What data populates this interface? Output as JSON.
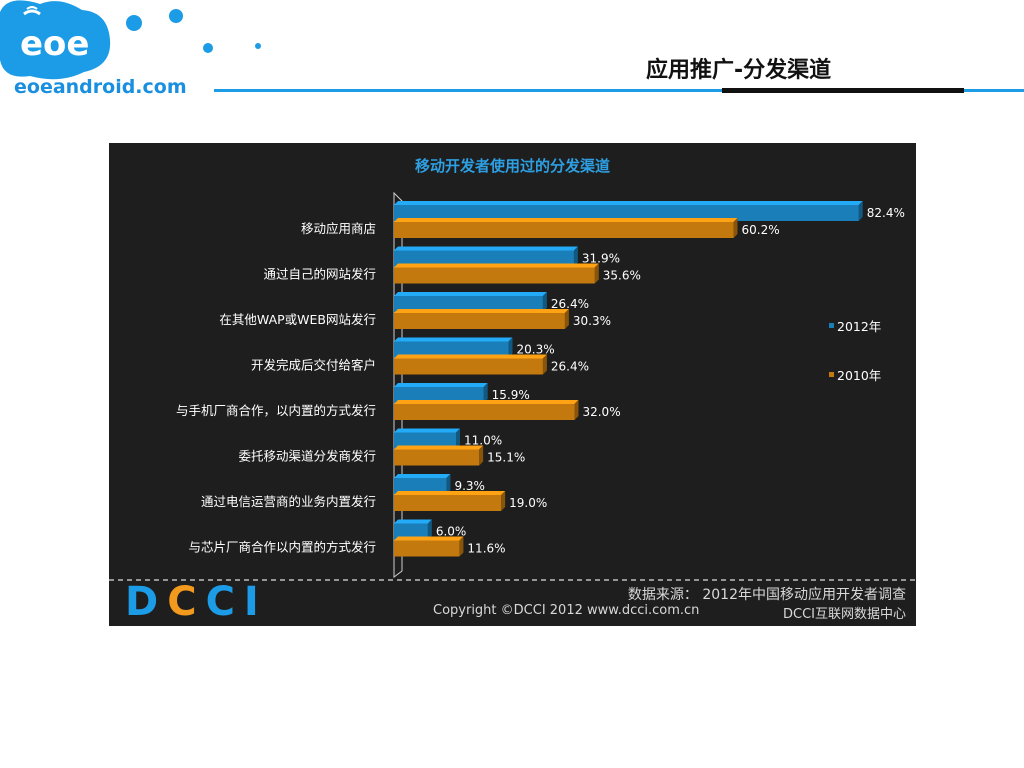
{
  "header": {
    "logo_badge": "eoe",
    "logo_text": "eoeandroid.com",
    "title": "应用推广-分发渠道"
  },
  "colors": {
    "brand_blue": "#1c9ce6",
    "series_2012": "#1a7fb8",
    "series_2010": "#c4790f",
    "panel_bg": "#1e1e1e"
  },
  "chart_data": {
    "type": "bar",
    "orientation": "horizontal",
    "title": "移动开发者使用过的分发渠道",
    "categories": [
      "移动应用商店",
      "通过自己的网站发行",
      "在其他WAP或WEB网站发行",
      "开发完成后交付给客户",
      "与手机厂商合作，以内置的方式发行",
      "委托移动渠道分发商发行",
      "通过电信运营商的业务内置发行",
      "与芯片厂商合作以内置的方式发行"
    ],
    "series": [
      {
        "name": "2012年",
        "values": [
          82.4,
          31.9,
          26.4,
          20.3,
          15.9,
          11.0,
          9.3,
          6.0
        ],
        "labels": [
          "82.4%",
          "31.9%",
          "26.4%",
          "20.3%",
          "15.9%",
          "11.0%",
          "9.3%",
          "6.0%"
        ]
      },
      {
        "name": "2010年",
        "values": [
          60.2,
          35.6,
          30.3,
          26.4,
          32.0,
          15.1,
          19.0,
          11.6
        ],
        "labels": [
          "60.2%",
          "35.6%",
          "30.3%",
          "26.4%",
          "32.0%",
          "15.1%",
          "19.0%",
          "11.6%"
        ]
      }
    ],
    "xlim": [
      0,
      100
    ],
    "legend": "right",
    "grid": false
  },
  "footer": {
    "brand": "DCCI",
    "source": "数据来源： 2012年中国移动应用开发者调查",
    "copyright": "Copyright ©DCCI 2012 www.dcci.com.cn",
    "org": "DCCI互联网数据中心"
  }
}
